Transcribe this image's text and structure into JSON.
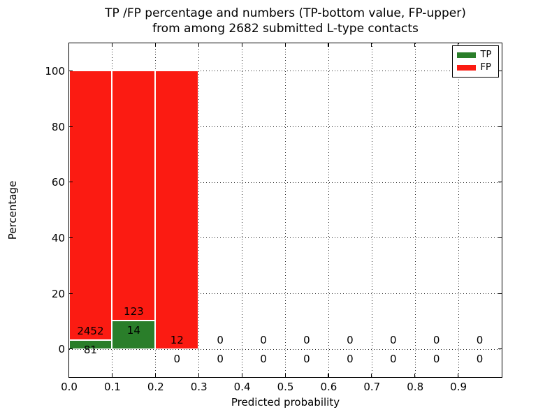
{
  "figure": {
    "title_line1": "TP /FP percentage and numbers (TP-bottom value, FP-upper)",
    "title_line2": "from among 2682 submitted L-type contacts",
    "xlabel": "Predicted probability",
    "ylabel": "Percentage"
  },
  "legend": {
    "items": [
      {
        "label": "TP",
        "color": "#2a7e2a"
      },
      {
        "label": "FP",
        "color": "#fb1b12"
      }
    ]
  },
  "chart_data": {
    "type": "bar",
    "stacked": true,
    "title": "TP /FP percentage and numbers (TP-bottom value, FP-upper) from among 2682 submitted L-type contacts",
    "xlabel": "Predicted probability",
    "ylabel": "Percentage",
    "xlim": [
      0.0,
      1.0
    ],
    "ylim": [
      -10,
      110
    ],
    "grid": true,
    "legend_position": "upper right",
    "total_submitted_contacts": 2682,
    "series": [
      {
        "name": "TP",
        "color": "#2a7e2a"
      },
      {
        "name": "FP",
        "color": "#fb1b12"
      }
    ],
    "xticks": [
      {
        "value": 0.0,
        "label": "0.0"
      },
      {
        "value": 0.1,
        "label": "0.1"
      },
      {
        "value": 0.2,
        "label": "0.2"
      },
      {
        "value": 0.3,
        "label": "0.3"
      },
      {
        "value": 0.4,
        "label": "0.4"
      },
      {
        "value": 0.5,
        "label": "0.5"
      },
      {
        "value": 0.6,
        "label": "0.6"
      },
      {
        "value": 0.7,
        "label": "0.7"
      },
      {
        "value": 0.8,
        "label": "0.8"
      },
      {
        "value": 0.9,
        "label": "0.9"
      }
    ],
    "yticks": [
      {
        "value": 0,
        "label": "0"
      },
      {
        "value": 20,
        "label": "20"
      },
      {
        "value": 40,
        "label": "40"
      },
      {
        "value": 60,
        "label": "60"
      },
      {
        "value": 80,
        "label": "80"
      },
      {
        "value": 100,
        "label": "100"
      }
    ],
    "bins": [
      {
        "range": [
          0.0,
          0.1
        ],
        "tp_count": 81,
        "fp_count": 2452,
        "tp_pct": 3.2,
        "fp_pct": 96.8
      },
      {
        "range": [
          0.1,
          0.2
        ],
        "tp_count": 14,
        "fp_count": 123,
        "tp_pct": 10.2,
        "fp_pct": 89.8
      },
      {
        "range": [
          0.2,
          0.3
        ],
        "tp_count": 0,
        "fp_count": 12,
        "tp_pct": 0.0,
        "fp_pct": 100.0
      },
      {
        "range": [
          0.3,
          0.4
        ],
        "tp_count": 0,
        "fp_count": 0,
        "tp_pct": 0.0,
        "fp_pct": 0.0
      },
      {
        "range": [
          0.4,
          0.5
        ],
        "tp_count": 0,
        "fp_count": 0,
        "tp_pct": 0.0,
        "fp_pct": 0.0
      },
      {
        "range": [
          0.5,
          0.6
        ],
        "tp_count": 0,
        "fp_count": 0,
        "tp_pct": 0.0,
        "fp_pct": 0.0
      },
      {
        "range": [
          0.6,
          0.7
        ],
        "tp_count": 0,
        "fp_count": 0,
        "tp_pct": 0.0,
        "fp_pct": 0.0
      },
      {
        "range": [
          0.7,
          0.8
        ],
        "tp_count": 0,
        "fp_count": 0,
        "tp_pct": 0.0,
        "fp_pct": 0.0
      },
      {
        "range": [
          0.8,
          0.9
        ],
        "tp_count": 0,
        "fp_count": 0,
        "tp_pct": 0.0,
        "fp_pct": 0.0
      },
      {
        "range": [
          0.9,
          1.0
        ],
        "tp_count": 0,
        "fp_count": 0,
        "tp_pct": 0.0,
        "fp_pct": 0.0
      }
    ]
  }
}
